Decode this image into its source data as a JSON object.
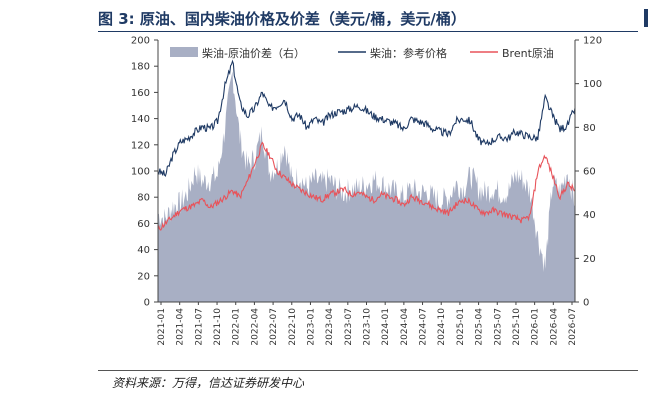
{
  "header": {
    "title": "图 3:  原油、国内柴油价格及价差（美元/桶，美元/桶）"
  },
  "footer": {
    "source": "资料来源：万得，信达证券研发中心"
  },
  "colors": {
    "title": "#1f3a64",
    "diesel": "#1f3a64",
    "brent": "#e8535a",
    "spread": "#a8afc4"
  },
  "chart_data": {
    "type": "line",
    "title": "",
    "xlabel": "",
    "ylabel": "",
    "ylim": [
      0,
      200
    ],
    "y2lim": [
      0,
      120
    ],
    "yticks": [
      0,
      20,
      40,
      60,
      80,
      100,
      120,
      140,
      160,
      180,
      200
    ],
    "y2ticks": [
      0,
      20,
      40,
      60,
      80,
      100,
      120
    ],
    "xticks": [
      "2021-01",
      "2021-04",
      "2021-07",
      "2021-10",
      "2022-01",
      "2022-04",
      "2022-07",
      "2022-10",
      "2023-01",
      "2023-04",
      "2023-07",
      "2023-10",
      "2024-01",
      "2024-04",
      "2024-07",
      "2024-10",
      "2025-01",
      "2025-04",
      "2025-07",
      "2025-10",
      "2026-01",
      "2026-04",
      "2026-07"
    ],
    "legend_position": "top",
    "grid": false,
    "series": [
      {
        "name": "柴油-原油价差（右）",
        "type": "area",
        "axis": "right",
        "values": [
          40,
          38,
          44,
          45,
          50,
          60,
          55,
          56,
          58,
          80,
          105,
          75,
          62,
          66,
          78,
          60,
          62,
          72,
          55,
          58,
          52,
          56,
          54,
          56,
          52,
          50,
          52,
          52,
          54,
          56,
          54,
          52,
          50,
          48,
          52,
          50,
          50,
          48,
          46,
          48,
          54,
          52,
          58,
          52,
          50,
          52,
          50,
          50,
          58,
          56,
          50,
          30,
          16,
          55,
          50,
          60,
          45
        ]
      },
      {
        "name": "柴油：参考价格",
        "type": "line",
        "axis": "left",
        "values": [
          100,
          97,
          112,
          122,
          125,
          130,
          134,
          132,
          138,
          165,
          183,
          152,
          142,
          148,
          160,
          148,
          150,
          155,
          140,
          143,
          133,
          140,
          136,
          142,
          145,
          146,
          148,
          150,
          146,
          142,
          140,
          138,
          136,
          132,
          140,
          138,
          136,
          132,
          130,
          128,
          138,
          140,
          138,
          124,
          120,
          124,
          126,
          125,
          130,
          128,
          126,
          125,
          156,
          142,
          132,
          135,
          148
        ]
      },
      {
        "name": "Brent原油",
        "type": "line",
        "axis": "left",
        "values": [
          55,
          60,
          65,
          70,
          72,
          74,
          78,
          72,
          76,
          80,
          85,
          80,
          92,
          106,
          120,
          112,
          100,
          95,
          90,
          86,
          83,
          80,
          78,
          82,
          84,
          86,
          82,
          84,
          80,
          78,
          82,
          80,
          78,
          74,
          80,
          78,
          76,
          72,
          70,
          68,
          74,
          78,
          76,
          70,
          68,
          70,
          68,
          66,
          64,
          62,
          66,
          100,
          112,
          96,
          80,
          90,
          85
        ]
      }
    ]
  }
}
